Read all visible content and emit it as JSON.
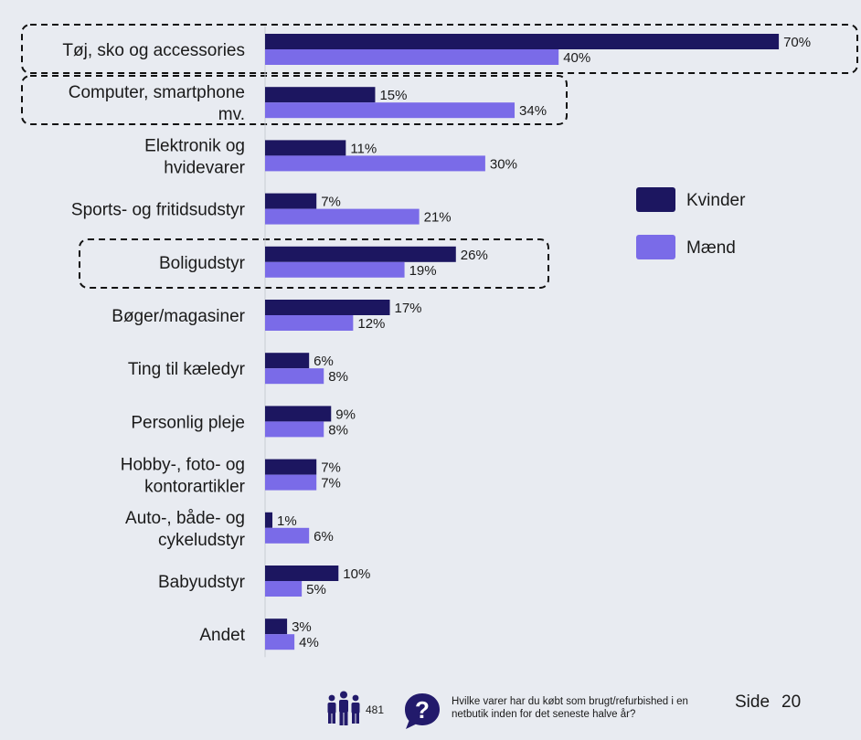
{
  "chart_data": {
    "type": "bar",
    "orientation": "horizontal",
    "categories": [
      "Tøj, sko og accessories",
      "Computer, smartphone mv.",
      "Elektronik og hvidevarer",
      "Sports- og fritidsudstyr",
      "Boligudstyr",
      "Bøger/magasiner",
      "Ting til kæledyr",
      "Personlig pleje",
      "Hobby-, foto- og kontorartikler",
      "Auto-, både- og cykeludstyr",
      "Babyudstyr",
      "Andet"
    ],
    "category_lines": [
      [
        "Tøj, sko og accessories"
      ],
      [
        "Computer, smartphone",
        "mv."
      ],
      [
        "Elektronik og",
        "hvidevarer"
      ],
      [
        "Sports- og fritidsudstyr"
      ],
      [
        "Boligudstyr"
      ],
      [
        "Bøger/magasiner"
      ],
      [
        "Ting til kæledyr"
      ],
      [
        "Personlig pleje"
      ],
      [
        "Hobby-, foto- og",
        "kontorartikler"
      ],
      [
        "Auto-, både- og",
        "cykeludstyr"
      ],
      [
        "Babyudstyr"
      ],
      [
        "Andet"
      ]
    ],
    "series": [
      {
        "name": "Kvinder",
        "color": "#1c1660",
        "values": [
          70,
          15,
          11,
          7,
          26,
          17,
          6,
          9,
          7,
          1,
          10,
          3
        ]
      },
      {
        "name": "Mænd",
        "color": "#7a6be8",
        "values": [
          40,
          34,
          30,
          21,
          19,
          12,
          8,
          8,
          7,
          6,
          5,
          4
        ]
      }
    ],
    "value_suffix": "%",
    "xlim": [
      0,
      100
    ],
    "highlighted_categories": [
      "Tøj, sko og accessories",
      "Computer, smartphone mv.",
      "Boligudstyr"
    ],
    "legend_position": "right"
  },
  "footer": {
    "respondents": "481",
    "question": "Hvilke varer har du købt som brugt/refurbished i en netbutik inden for det seneste halve år?",
    "page_label": "Side",
    "page_number": "20"
  },
  "colors": {
    "background": "#e8ebf1",
    "kvinder": "#1c1660",
    "maend": "#7a6be8",
    "icon": "#221a6b"
  }
}
